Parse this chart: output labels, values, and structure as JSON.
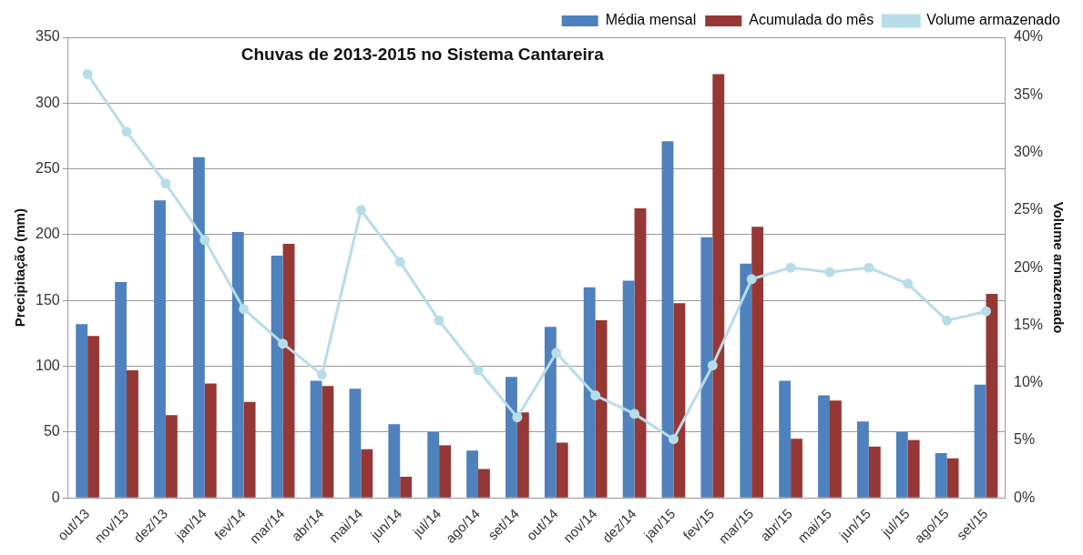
{
  "chart_data": {
    "type": "bar",
    "title": "Chuvas de 2013-2015 no Sistema Cantareira",
    "ylabel": "Precipitação (mm)",
    "y2label": "Volume armazenado",
    "categories": [
      "out/13",
      "nov/13",
      "dez/13",
      "jan/14",
      "fev/14",
      "mar/14",
      "abr/14",
      "mai/14",
      "jun/14",
      "jul/14",
      "ago/14",
      "set/14",
      "out/14",
      "nov/14",
      "dez/14",
      "jan/15",
      "fev/15",
      "mar/15",
      "abr/15",
      "mai/15",
      "jun/15",
      "jul/15",
      "ago/15",
      "set/15"
    ],
    "series": [
      {
        "name": "Média mensal",
        "color": "#4f81bd",
        "values": [
          132,
          164,
          226,
          259,
          202,
          184,
          89,
          83,
          56,
          50,
          36,
          92,
          130,
          160,
          165,
          271,
          198,
          178,
          89,
          78,
          58,
          50,
          34,
          86
        ]
      },
      {
        "name": "Acumulada do mês",
        "color": "#953735",
        "values": [
          123,
          97,
          63,
          87,
          73,
          193,
          85,
          37,
          16,
          40,
          22,
          65,
          42,
          135,
          220,
          148,
          322,
          206,
          45,
          74,
          39,
          44,
          30,
          155
        ]
      },
      {
        "name": "Volume armazenado",
        "type": "line",
        "axis": "y2",
        "color": "#b7dde8",
        "values": [
          36.8,
          31.8,
          27.3,
          22.4,
          16.4,
          13.4,
          10.7,
          25.0,
          20.5,
          15.4,
          11.1,
          7.0,
          12.6,
          8.9,
          7.3,
          5.1,
          11.5,
          19.0,
          20.0,
          19.6,
          20.0,
          18.6,
          15.4,
          16.2
        ]
      }
    ],
    "ylim": [
      0,
      350
    ],
    "yticks": [
      0,
      50,
      100,
      150,
      200,
      250,
      300,
      350
    ],
    "y2lim": [
      0,
      40
    ],
    "y2ticks": [
      {
        "value": 0,
        "label": "0%"
      },
      {
        "value": 5,
        "label": "5%"
      },
      {
        "value": 10,
        "label": "10%"
      },
      {
        "value": 15,
        "label": "15%"
      },
      {
        "value": 20,
        "label": "20%"
      },
      {
        "value": 25,
        "label": "25%"
      },
      {
        "value": 30,
        "label": "30%"
      },
      {
        "value": 35,
        "label": "35%"
      },
      {
        "value": 40,
        "label": "40%"
      }
    ],
    "grid": "y",
    "legend": "top right",
    "marker": "circle"
  }
}
